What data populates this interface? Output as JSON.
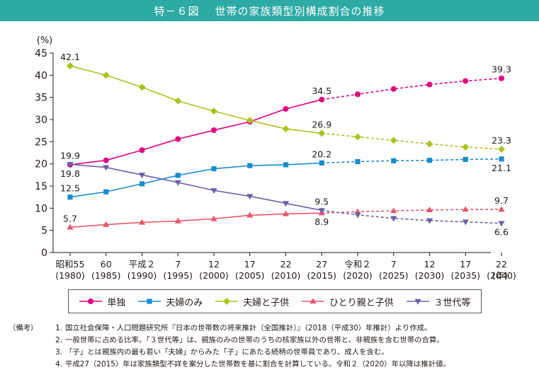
{
  "figure": {
    "number": "特－６図",
    "title": "世帯の家族類型別構成割合の推移"
  },
  "chart_data": {
    "type": "line",
    "ylabel": "(%)",
    "xlabel": "(年)",
    "ylim": [
      0,
      45
    ],
    "yticks": [
      0,
      5,
      10,
      15,
      20,
      25,
      30,
      35,
      40,
      45
    ],
    "categories": [
      {
        "era": "昭和55",
        "year": "(1980)"
      },
      {
        "era": "60",
        "year": "(1985)"
      },
      {
        "era": "平成２",
        "year": "(1990)"
      },
      {
        "era": "7",
        "year": "(1995)"
      },
      {
        "era": "12",
        "year": "(2000)"
      },
      {
        "era": "17",
        "year": "(2005)"
      },
      {
        "era": "22",
        "year": "(2010)"
      },
      {
        "era": "27",
        "year": "(2015)"
      },
      {
        "era": "令和２",
        "year": "(2020)"
      },
      {
        "era": "7",
        "year": "(2025)"
      },
      {
        "era": "12",
        "year": "(2030)"
      },
      {
        "era": "17",
        "year": "(2035)"
      },
      {
        "era": "22",
        "year": "(2040)"
      }
    ],
    "projection_from_index": 7,
    "series": [
      {
        "name": "単独",
        "color": "#e4007f",
        "marker": "circle",
        "values": [
          19.8,
          20.8,
          23.1,
          25.6,
          27.6,
          29.5,
          32.4,
          34.5,
          35.7,
          36.9,
          37.9,
          38.7,
          39.3
        ]
      },
      {
        "name": "夫婦のみ",
        "color": "#1a8ccf",
        "marker": "square",
        "values": [
          12.5,
          13.7,
          15.5,
          17.4,
          18.9,
          19.6,
          19.8,
          20.2,
          20.5,
          20.7,
          20.8,
          21.0,
          21.1
        ]
      },
      {
        "name": "夫婦と子供",
        "color": "#a8c41e",
        "marker": "diamond",
        "values": [
          42.1,
          40.0,
          37.3,
          34.2,
          31.9,
          29.8,
          27.9,
          26.9,
          26.1,
          25.3,
          24.5,
          23.8,
          23.3
        ]
      },
      {
        "name": "ひとり親と子供",
        "color": "#e9546b",
        "marker": "triangle",
        "values": [
          5.7,
          6.3,
          6.8,
          7.1,
          7.6,
          8.4,
          8.7,
          8.9,
          9.2,
          9.4,
          9.6,
          9.7,
          9.7
        ]
      },
      {
        "name": "３世代等",
        "color": "#6f5fa8",
        "marker": "triangle-down",
        "values": [
          19.9,
          19.2,
          17.5,
          15.8,
          14.0,
          12.7,
          11.1,
          9.5,
          8.5,
          7.7,
          7.2,
          6.9,
          6.6
        ]
      }
    ],
    "data_labels": [
      {
        "series": 0,
        "index": 0,
        "text": "19.8",
        "pos": "below"
      },
      {
        "series": 0,
        "index": 7,
        "text": "34.5",
        "pos": "above"
      },
      {
        "series": 0,
        "index": 12,
        "text": "39.3",
        "pos": "above"
      },
      {
        "series": 1,
        "index": 0,
        "text": "12.5",
        "pos": "above"
      },
      {
        "series": 1,
        "index": 7,
        "text": "20.2",
        "pos": "above"
      },
      {
        "series": 1,
        "index": 12,
        "text": "21.1",
        "pos": "below"
      },
      {
        "series": 2,
        "index": 0,
        "text": "42.1",
        "pos": "above"
      },
      {
        "series": 2,
        "index": 7,
        "text": "26.9",
        "pos": "above"
      },
      {
        "series": 2,
        "index": 12,
        "text": "23.3",
        "pos": "above"
      },
      {
        "series": 3,
        "index": 0,
        "text": "5.7",
        "pos": "above"
      },
      {
        "series": 3,
        "index": 7,
        "text": "8.9",
        "pos": "below"
      },
      {
        "series": 3,
        "index": 12,
        "text": "9.7",
        "pos": "above"
      },
      {
        "series": 4,
        "index": 0,
        "text": "19.9",
        "pos": "above"
      },
      {
        "series": 4,
        "index": 7,
        "text": "9.5",
        "pos": "above"
      },
      {
        "series": 4,
        "index": 12,
        "text": "6.6",
        "pos": "below"
      }
    ],
    "grid": false,
    "legend_position": "bottom"
  },
  "notes": {
    "label": "（備考）",
    "items": [
      {
        "num": "1.",
        "text": "国立社会保障・人口問題研究所『日本の世帯数の将来推計（全国推計）』（2018（平成30）年推計）より作成。"
      },
      {
        "num": "2.",
        "text": "一般世帯に占める比率。「３世代等」は、親族のみの世帯のうちの核家族以外の世帯と、非親族を含む世帯の合算。"
      },
      {
        "num": "3.",
        "text": "「子」とは親族内の最も若い「夫婦」からみた「子」にあたる続柄の世帯員であり、成人を含む。"
      },
      {
        "num": "4.",
        "text": "平成27（2015）年は家族類型不詳を案分した世帯数を基に割合を計算している。令和２（2020）年以降は推計値。"
      }
    ]
  }
}
